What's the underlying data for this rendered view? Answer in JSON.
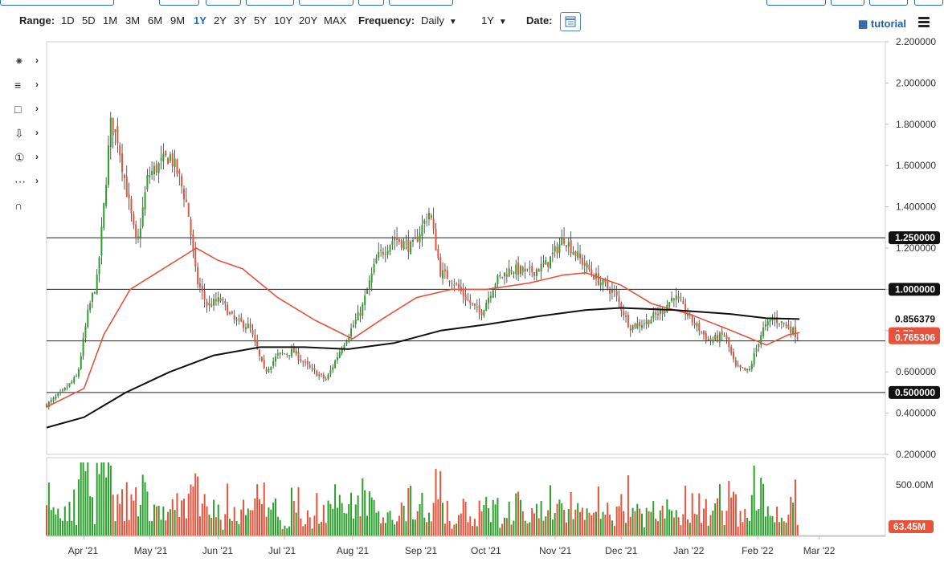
{
  "toolbar": {
    "range_label": "Range:",
    "ranges": [
      "1D",
      "5D",
      "1M",
      "3M",
      "6M",
      "9M",
      "1Y",
      "2Y",
      "3Y",
      "5Y",
      "10Y",
      "20Y",
      "MAX"
    ],
    "active_range": "1Y",
    "frequency_label": "Frequency:",
    "frequency_value": "Daily",
    "period_value": "1Y",
    "date_label": "Date:",
    "tutorial_label": "tutorial"
  },
  "tools": [
    "crosshair-tool-icon",
    "fib-levels-icon",
    "rectangle-icon",
    "arrow-down-icon",
    "number-one-icon",
    "pitchfork-icon",
    "magnet-icon"
  ],
  "colors": {
    "up": "#2ca02c",
    "down": "#e5533d",
    "ma_fast": "#e5533d",
    "ma_slow": "#111111",
    "hline": "#222222",
    "grid": "#e6e6e6",
    "accent": "#1a6fc9"
  },
  "chart_data": {
    "type": "candlestick",
    "xlabels": [
      "Apr '21",
      "May '21",
      "Jun '21",
      "Jul '21",
      "Aug '21",
      "Sep '21",
      "Oct '21",
      "Nov '21",
      "Dec '21",
      "Jan '22",
      "Feb '22",
      "Mar '22"
    ],
    "y_ticks": [
      "0.200000",
      "0.400000",
      "0.600000",
      "0.800000",
      "1.000000",
      "1.200000",
      "1.400000",
      "1.600000",
      "1.800000",
      "2.000000",
      "2.200000"
    ],
    "ylim": [
      0.2,
      2.2
    ],
    "horizontal_lines": [
      {
        "value": 1.25,
        "label": "1.250000"
      },
      {
        "value": 1.0,
        "label": "1.000000"
      },
      {
        "value": 0.75,
        "label": ""
      },
      {
        "value": 0.5,
        "label": "0.500000"
      }
    ],
    "price_markers": [
      {
        "value": 0.856379,
        "label": "0.856379",
        "color": "#111111"
      },
      {
        "value": 0.785,
        "label": "0.78",
        "color": "#e5533d"
      },
      {
        "value": 0.765306,
        "label": "0.765306",
        "color": "#e5533d"
      }
    ],
    "close_path": [
      [
        "2021-03-15",
        0.44
      ],
      [
        "2021-03-22",
        0.5
      ],
      [
        "2021-03-29",
        0.58
      ],
      [
        "2021-04-03",
        0.9
      ],
      [
        "2021-04-07",
        1.05
      ],
      [
        "2021-04-10",
        1.4
      ],
      [
        "2021-04-13",
        1.8
      ],
      [
        "2021-04-16",
        1.75
      ],
      [
        "2021-04-20",
        1.5
      ],
      [
        "2021-04-25",
        1.2
      ],
      [
        "2021-04-30",
        1.55
      ],
      [
        "2021-05-05",
        1.6
      ],
      [
        "2021-05-10",
        1.65
      ],
      [
        "2021-05-14",
        1.55
      ],
      [
        "2021-05-18",
        1.4
      ],
      [
        "2021-05-22",
        1.05
      ],
      [
        "2021-05-27",
        0.92
      ],
      [
        "2021-06-02",
        0.95
      ],
      [
        "2021-06-08",
        0.85
      ],
      [
        "2021-06-15",
        0.82
      ],
      [
        "2021-06-22",
        0.6
      ],
      [
        "2021-06-28",
        0.68
      ],
      [
        "2021-07-05",
        0.7
      ],
      [
        "2021-07-12",
        0.62
      ],
      [
        "2021-07-20",
        0.56
      ],
      [
        "2021-07-27",
        0.72
      ],
      [
        "2021-08-05",
        0.9
      ],
      [
        "2021-08-12",
        1.15
      ],
      [
        "2021-08-20",
        1.25
      ],
      [
        "2021-08-28",
        1.2
      ],
      [
        "2021-09-05",
        1.38
      ],
      [
        "2021-09-10",
        1.08
      ],
      [
        "2021-09-15",
        1.05
      ],
      [
        "2021-09-22",
        0.95
      ],
      [
        "2021-09-28",
        0.88
      ],
      [
        "2021-10-05",
        1.04
      ],
      [
        "2021-10-12",
        1.1
      ],
      [
        "2021-10-20",
        1.08
      ],
      [
        "2021-10-28",
        1.12
      ],
      [
        "2021-11-05",
        1.25
      ],
      [
        "2021-11-12",
        1.15
      ],
      [
        "2021-11-20",
        1.05
      ],
      [
        "2021-11-28",
        0.98
      ],
      [
        "2021-12-05",
        0.82
      ],
      [
        "2021-12-12",
        0.84
      ],
      [
        "2021-12-20",
        0.9
      ],
      [
        "2021-12-25",
        0.97
      ],
      [
        "2022-01-02",
        0.85
      ],
      [
        "2022-01-10",
        0.75
      ],
      [
        "2022-01-17",
        0.78
      ],
      [
        "2022-01-22",
        0.62
      ],
      [
        "2022-01-28",
        0.6
      ],
      [
        "2022-02-03",
        0.8
      ],
      [
        "2022-02-08",
        0.86
      ],
      [
        "2022-02-15",
        0.82
      ],
      [
        "2022-02-20",
        0.765
      ]
    ],
    "ma_fast": [
      [
        "2021-03-15",
        0.43
      ],
      [
        "2021-04-01",
        0.52
      ],
      [
        "2021-04-10",
        0.78
      ],
      [
        "2021-04-22",
        1.0
      ],
      [
        "2021-05-10",
        1.12
      ],
      [
        "2021-05-22",
        1.2
      ],
      [
        "2021-06-01",
        1.14
      ],
      [
        "2021-06-12",
        1.1
      ],
      [
        "2021-06-28",
        0.96
      ],
      [
        "2021-07-15",
        0.85
      ],
      [
        "2021-08-01",
        0.76
      ],
      [
        "2021-08-15",
        0.86
      ],
      [
        "2021-08-30",
        0.96
      ],
      [
        "2021-09-15",
        1.0
      ],
      [
        "2021-10-01",
        1.0
      ],
      [
        "2021-10-20",
        1.03
      ],
      [
        "2021-11-05",
        1.07
      ],
      [
        "2021-11-15",
        1.08
      ],
      [
        "2021-12-01",
        1.02
      ],
      [
        "2021-12-15",
        0.93
      ],
      [
        "2022-01-01",
        0.88
      ],
      [
        "2022-01-20",
        0.8
      ],
      [
        "2022-02-05",
        0.73
      ],
      [
        "2022-02-15",
        0.78
      ],
      [
        "2022-02-20",
        0.79
      ]
    ],
    "ma_slow": [
      [
        "2021-03-15",
        0.33
      ],
      [
        "2021-04-01",
        0.38
      ],
      [
        "2021-04-20",
        0.5
      ],
      [
        "2021-05-10",
        0.6
      ],
      [
        "2021-05-30",
        0.68
      ],
      [
        "2021-06-20",
        0.72
      ],
      [
        "2021-07-10",
        0.72
      ],
      [
        "2021-07-30",
        0.71
      ],
      [
        "2021-08-20",
        0.74
      ],
      [
        "2021-09-10",
        0.8
      ],
      [
        "2021-10-01",
        0.83
      ],
      [
        "2021-10-25",
        0.87
      ],
      [
        "2021-11-15",
        0.9
      ],
      [
        "2021-12-01",
        0.91
      ],
      [
        "2021-12-25",
        0.9
      ],
      [
        "2022-01-20",
        0.88
      ],
      [
        "2022-02-05",
        0.86
      ],
      [
        "2022-02-20",
        0.856
      ]
    ],
    "volume_ticks": [
      "500.00M"
    ],
    "volume_last": "63.45M"
  }
}
